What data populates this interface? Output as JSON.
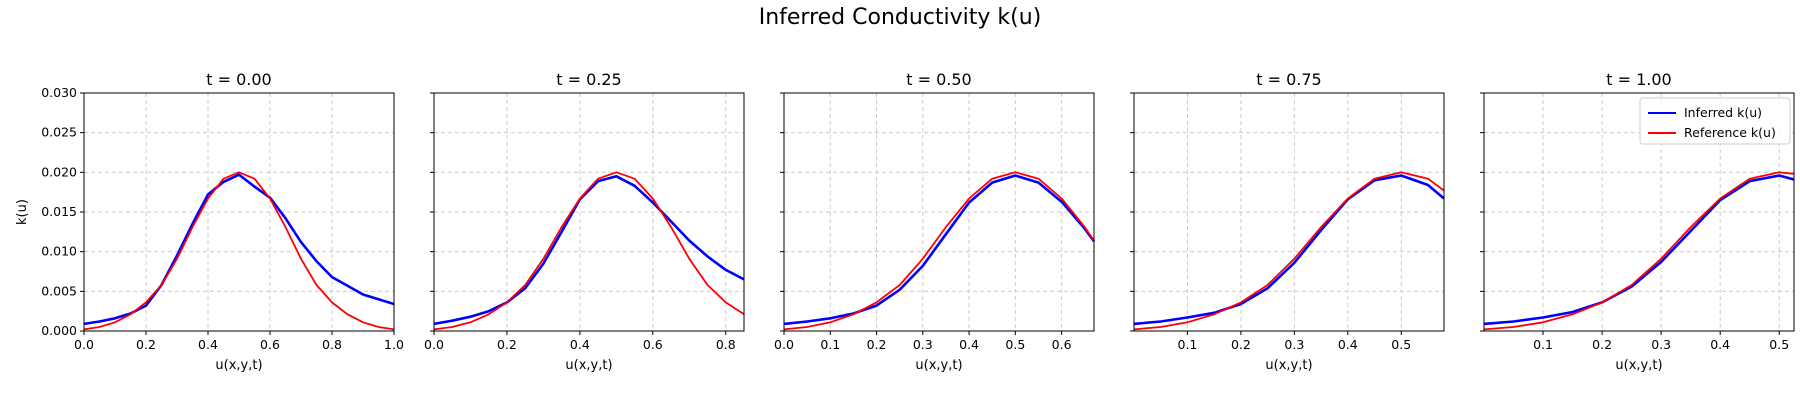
{
  "title": "Inferred Conductivity k(u)",
  "legend": {
    "placement": "upper-right",
    "entries": [
      {
        "label": "Inferred k(u)",
        "color": "#0000ff"
      },
      {
        "label": "Reference k(u)",
        "color": "#ff0000"
      }
    ]
  },
  "chart_data": [
    {
      "type": "line",
      "title": "t = 0.00",
      "xlabel": "u(x,y,t)",
      "ylabel": "k(u)",
      "xlim": [
        0.0,
        1.0
      ],
      "ylim": [
        0.0,
        0.03
      ],
      "xticks": [
        "0.0",
        "0.2",
        "0.4",
        "0.6",
        "0.8",
        "1.0"
      ],
      "yticks": [
        "0.000",
        "0.005",
        "0.010",
        "0.015",
        "0.020",
        "0.025",
        "0.030"
      ],
      "grid": true,
      "series": [
        {
          "name": "Inferred k(u)",
          "color": "#0000ff",
          "x": [
            0.0,
            0.05,
            0.1,
            0.15,
            0.2,
            0.25,
            0.3,
            0.35,
            0.4,
            0.45,
            0.5,
            0.55,
            0.6,
            0.65,
            0.7,
            0.75,
            0.8,
            0.85,
            0.9,
            0.95,
            1.0
          ],
          "y": [
            0.0009,
            0.0012,
            0.0016,
            0.0022,
            0.0032,
            0.0058,
            0.0095,
            0.0135,
            0.0172,
            0.0188,
            0.0197,
            0.0182,
            0.0168,
            0.0142,
            0.0112,
            0.0088,
            0.0068,
            0.0057,
            0.0046,
            0.004,
            0.0034
          ]
        },
        {
          "name": "Reference k(u)",
          "color": "#ff0000",
          "x": [
            0.0,
            0.05,
            0.1,
            0.15,
            0.2,
            0.25,
            0.3,
            0.35,
            0.4,
            0.45,
            0.5,
            0.55,
            0.6,
            0.65,
            0.7,
            0.75,
            0.8,
            0.85,
            0.9,
            0.95,
            1.0
          ],
          "y": [
            0.0002,
            0.0005,
            0.0011,
            0.0021,
            0.0036,
            0.0058,
            0.0091,
            0.0131,
            0.0167,
            0.0192,
            0.02,
            0.0192,
            0.0167,
            0.0131,
            0.0091,
            0.0058,
            0.0036,
            0.0021,
            0.0011,
            0.0005,
            0.0002
          ]
        }
      ]
    },
    {
      "type": "line",
      "title": "t = 0.25",
      "xlabel": "u(x,y,t)",
      "ylabel": "",
      "xlim": [
        0.0,
        0.85
      ],
      "ylim": [
        0.0,
        0.03
      ],
      "xticks": [
        "0.0",
        "0.2",
        "0.4",
        "0.6",
        "0.8"
      ],
      "yticks": [],
      "grid": true,
      "series": [
        {
          "name": "Inferred k(u)",
          "color": "#0000ff",
          "x": [
            0.0,
            0.05,
            0.1,
            0.15,
            0.2,
            0.25,
            0.3,
            0.35,
            0.4,
            0.45,
            0.5,
            0.55,
            0.6,
            0.65,
            0.7,
            0.75,
            0.8,
            0.85
          ],
          "y": [
            0.0009,
            0.0013,
            0.0018,
            0.0025,
            0.0036,
            0.0054,
            0.0085,
            0.0125,
            0.0166,
            0.0189,
            0.0195,
            0.0183,
            0.0162,
            0.0138,
            0.0114,
            0.0094,
            0.0077,
            0.0065
          ]
        },
        {
          "name": "Reference k(u)",
          "color": "#ff0000",
          "x": [
            0.0,
            0.05,
            0.1,
            0.15,
            0.2,
            0.25,
            0.3,
            0.35,
            0.4,
            0.45,
            0.5,
            0.55,
            0.6,
            0.65,
            0.7,
            0.75,
            0.8,
            0.85
          ],
          "y": [
            0.0002,
            0.0005,
            0.0011,
            0.0021,
            0.0036,
            0.0058,
            0.0091,
            0.0131,
            0.0167,
            0.0192,
            0.02,
            0.0192,
            0.0167,
            0.0131,
            0.0091,
            0.0058,
            0.0036,
            0.0021
          ]
        }
      ]
    },
    {
      "type": "line",
      "title": "t = 0.50",
      "xlabel": "u(x,y,t)",
      "ylabel": "",
      "xlim": [
        0.0,
        0.67
      ],
      "ylim": [
        0.0,
        0.03
      ],
      "xticks": [
        "0.0",
        "0.1",
        "0.2",
        "0.3",
        "0.4",
        "0.5",
        "0.6"
      ],
      "yticks": [],
      "grid": true,
      "series": [
        {
          "name": "Inferred k(u)",
          "color": "#0000ff",
          "x": [
            0.0,
            0.05,
            0.1,
            0.15,
            0.2,
            0.25,
            0.3,
            0.35,
            0.4,
            0.45,
            0.5,
            0.55,
            0.6,
            0.65,
            0.67
          ],
          "y": [
            0.0009,
            0.0012,
            0.0016,
            0.0022,
            0.0032,
            0.0052,
            0.0082,
            0.0122,
            0.0162,
            0.0187,
            0.0196,
            0.0187,
            0.0163,
            0.0129,
            0.0113
          ]
        },
        {
          "name": "Reference k(u)",
          "color": "#ff0000",
          "x": [
            0.0,
            0.05,
            0.1,
            0.15,
            0.2,
            0.25,
            0.3,
            0.35,
            0.4,
            0.45,
            0.5,
            0.55,
            0.6,
            0.65,
            0.67
          ],
          "y": [
            0.0002,
            0.0005,
            0.0011,
            0.0021,
            0.0036,
            0.0058,
            0.0091,
            0.0131,
            0.0167,
            0.0192,
            0.02,
            0.0192,
            0.0167,
            0.0131,
            0.0114
          ]
        }
      ]
    },
    {
      "type": "line",
      "title": "t = 0.75",
      "xlabel": "u(x,y,t)",
      "ylabel": "",
      "xlim": [
        0.0,
        0.58
      ],
      "ylim": [
        0.0,
        0.03
      ],
      "xticks": [
        "0.1",
        "0.2",
        "0.3",
        "0.4",
        "0.5"
      ],
      "yticks": [],
      "grid": true,
      "series": [
        {
          "name": "Inferred k(u)",
          "color": "#0000ff",
          "x": [
            0.0,
            0.05,
            0.1,
            0.15,
            0.2,
            0.25,
            0.3,
            0.35,
            0.4,
            0.45,
            0.5,
            0.55,
            0.58
          ],
          "y": [
            0.0009,
            0.0012,
            0.0017,
            0.0023,
            0.0034,
            0.0054,
            0.0086,
            0.0127,
            0.0166,
            0.019,
            0.0196,
            0.0184,
            0.0167
          ]
        },
        {
          "name": "Reference k(u)",
          "color": "#ff0000",
          "x": [
            0.0,
            0.05,
            0.1,
            0.15,
            0.2,
            0.25,
            0.3,
            0.35,
            0.4,
            0.45,
            0.5,
            0.55,
            0.58
          ],
          "y": [
            0.0002,
            0.0005,
            0.0011,
            0.0021,
            0.0036,
            0.0058,
            0.0091,
            0.0131,
            0.0167,
            0.0192,
            0.02,
            0.0192,
            0.0177
          ]
        }
      ]
    },
    {
      "type": "line",
      "title": "t = 1.00",
      "xlabel": "u(x,y,t)",
      "ylabel": "",
      "xlim": [
        0.0,
        0.525
      ],
      "ylim": [
        0.0,
        0.03
      ],
      "xticks": [
        "0.1",
        "0.2",
        "0.3",
        "0.4",
        "0.5"
      ],
      "yticks": [],
      "grid": true,
      "series": [
        {
          "name": "Inferred k(u)",
          "color": "#0000ff",
          "x": [
            0.0,
            0.05,
            0.1,
            0.15,
            0.2,
            0.25,
            0.3,
            0.35,
            0.4,
            0.45,
            0.5,
            0.525
          ],
          "y": [
            0.0009,
            0.0012,
            0.0017,
            0.0024,
            0.0036,
            0.0056,
            0.0087,
            0.0126,
            0.0165,
            0.0189,
            0.0196,
            0.0191
          ]
        },
        {
          "name": "Reference k(u)",
          "color": "#ff0000",
          "x": [
            0.0,
            0.05,
            0.1,
            0.15,
            0.2,
            0.25,
            0.3,
            0.35,
            0.4,
            0.45,
            0.5,
            0.525
          ],
          "y": [
            0.0002,
            0.0005,
            0.0011,
            0.0021,
            0.0036,
            0.0058,
            0.0091,
            0.0131,
            0.0167,
            0.0192,
            0.02,
            0.0198
          ]
        }
      ]
    }
  ]
}
